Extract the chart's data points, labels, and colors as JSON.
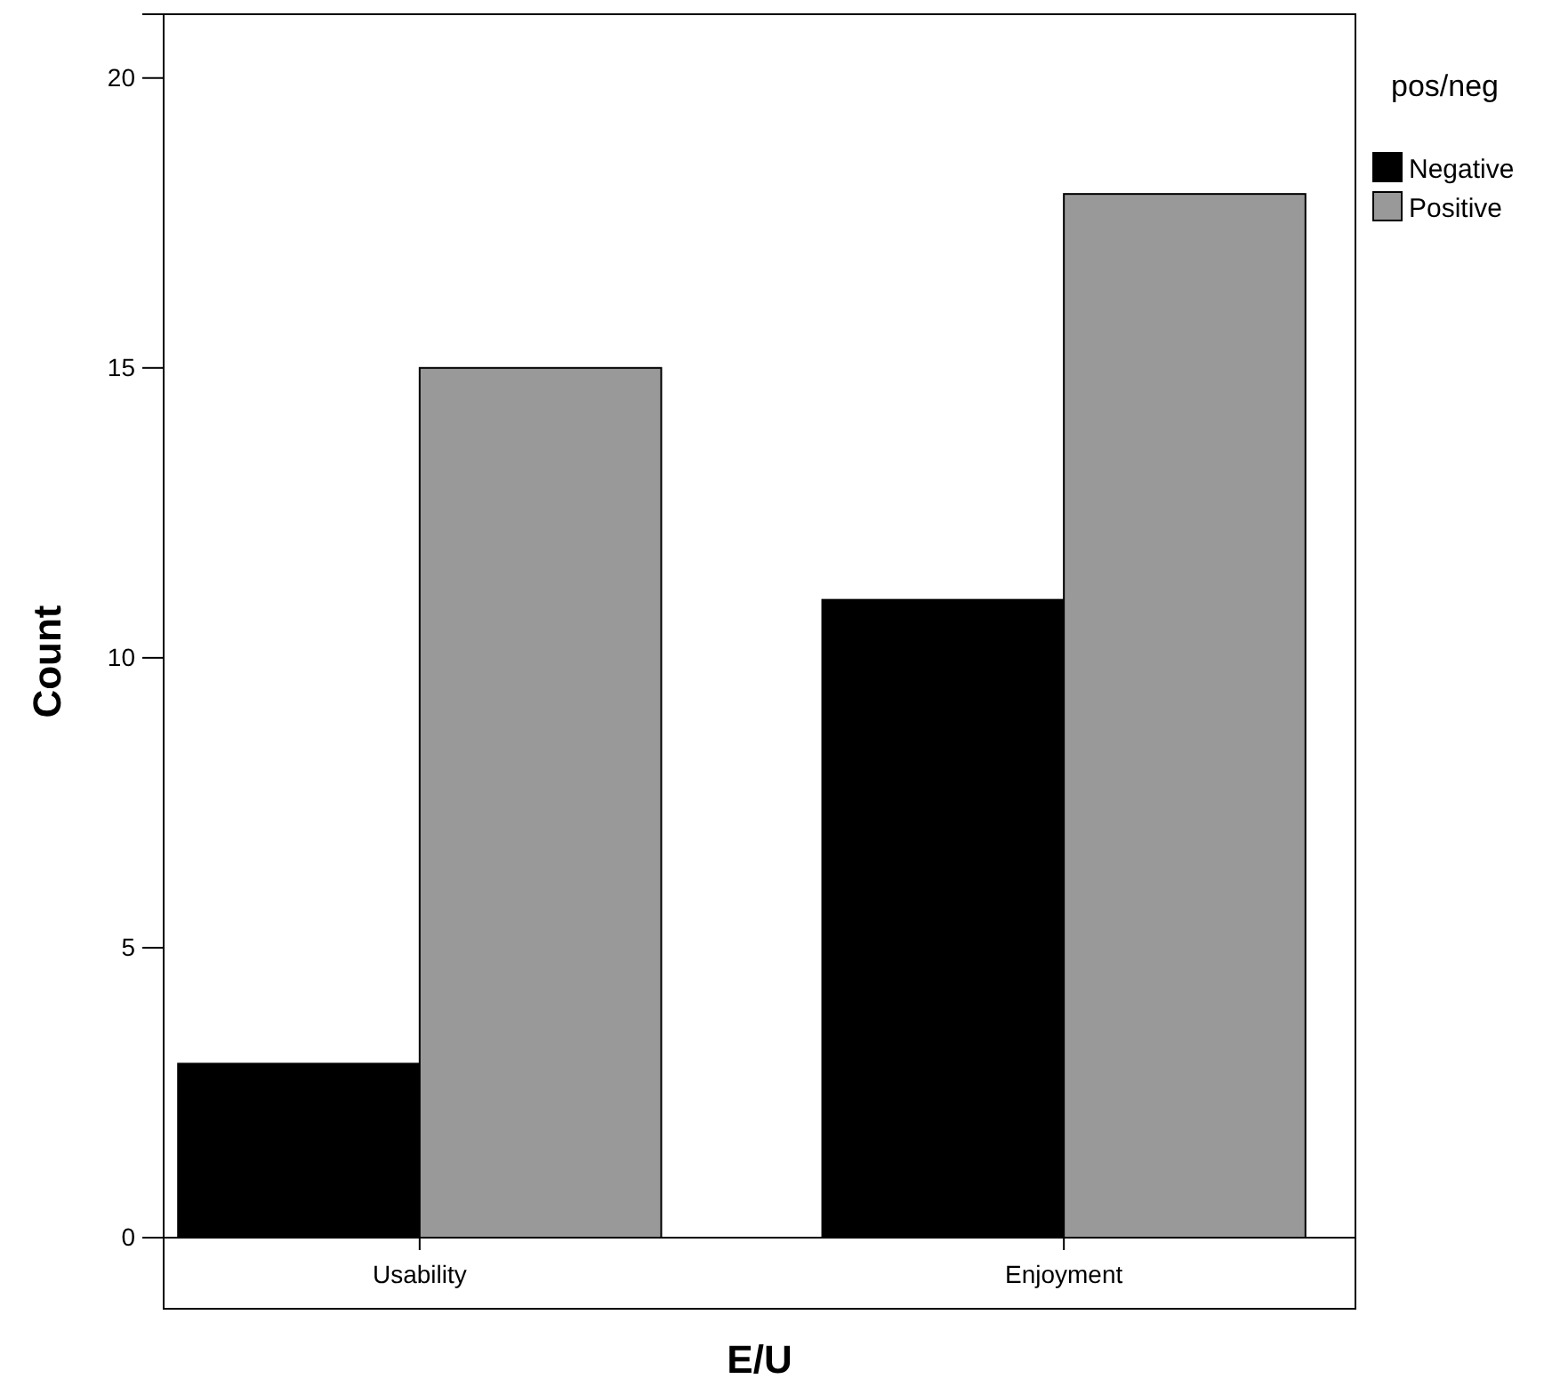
{
  "chart_data": {
    "type": "bar",
    "xlabel": "E/U",
    "ylabel": "Count",
    "legend_title": "pos/neg",
    "legend": "right",
    "categories": [
      "Usability",
      "Enjoyment"
    ],
    "series": [
      {
        "name": "Negative",
        "color": "#000000",
        "values": [
          3,
          11
        ]
      },
      {
        "name": "Positive",
        "color": "#999999",
        "values": [
          15,
          18
        ]
      }
    ],
    "ylim": [
      0,
      21.1
    ],
    "yticks": [
      0,
      5,
      10,
      15,
      20
    ]
  }
}
